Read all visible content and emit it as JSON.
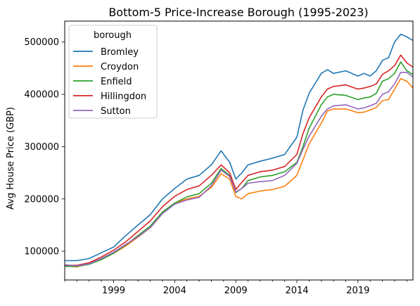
{
  "chart_data": {
    "type": "line",
    "title": "Bottom-5 Price-Increase Borough (1995-2023)",
    "xlabel": "",
    "ylabel": "Avg House Price (GBP)",
    "xlim": [
      1995.0,
      2023.5
    ],
    "ylim": [
      45000,
      540000
    ],
    "x_ticks": [
      1999,
      2004,
      2009,
      2014,
      2019
    ],
    "y_ticks": [
      100000,
      200000,
      300000,
      400000,
      500000
    ],
    "grid": false,
    "legend": {
      "title": "borough",
      "placement": "top-left"
    },
    "series": [
      {
        "name": "Bromley",
        "color": "#1f77b4",
        "points": [
          [
            1995.0,
            82000
          ],
          [
            1996.0,
            82000
          ],
          [
            1997.0,
            86000
          ],
          [
            1998.0,
            97000
          ],
          [
            1999.0,
            108000
          ],
          [
            2000.0,
            130000
          ],
          [
            2001.0,
            150000
          ],
          [
            2002.0,
            170000
          ],
          [
            2003.0,
            200000
          ],
          [
            2004.0,
            220000
          ],
          [
            2005.0,
            238000
          ],
          [
            2006.0,
            245000
          ],
          [
            2007.0,
            265000
          ],
          [
            2007.8,
            292000
          ],
          [
            2008.5,
            270000
          ],
          [
            2009.0,
            238000
          ],
          [
            2009.5,
            250000
          ],
          [
            2010.0,
            265000
          ],
          [
            2011.0,
            272000
          ],
          [
            2012.0,
            278000
          ],
          [
            2013.0,
            285000
          ],
          [
            2014.0,
            318000
          ],
          [
            2014.5,
            370000
          ],
          [
            2015.0,
            402000
          ],
          [
            2016.0,
            440000
          ],
          [
            2016.5,
            447000
          ],
          [
            2017.0,
            440000
          ],
          [
            2018.0,
            445000
          ],
          [
            2019.0,
            435000
          ],
          [
            2019.5,
            440000
          ],
          [
            2020.0,
            435000
          ],
          [
            2020.5,
            445000
          ],
          [
            2021.0,
            465000
          ],
          [
            2021.5,
            470000
          ],
          [
            2022.0,
            500000
          ],
          [
            2022.5,
            515000
          ],
          [
            2023.0,
            510000
          ],
          [
            2023.5,
            503000
          ]
        ]
      },
      {
        "name": "Croydon",
        "color": "#ff7f0e",
        "points": [
          [
            1995.0,
            72000
          ],
          [
            1996.0,
            70000
          ],
          [
            1997.0,
            76000
          ],
          [
            1998.0,
            85000
          ],
          [
            1999.0,
            96000
          ],
          [
            2000.0,
            110000
          ],
          [
            2001.0,
            127000
          ],
          [
            2002.0,
            145000
          ],
          [
            2003.0,
            172000
          ],
          [
            2004.0,
            192000
          ],
          [
            2005.0,
            200000
          ],
          [
            2006.0,
            205000
          ],
          [
            2007.0,
            222000
          ],
          [
            2007.8,
            248000
          ],
          [
            2008.5,
            238000
          ],
          [
            2009.0,
            205000
          ],
          [
            2009.5,
            200000
          ],
          [
            2010.0,
            210000
          ],
          [
            2011.0,
            215000
          ],
          [
            2012.0,
            218000
          ],
          [
            2013.0,
            224000
          ],
          [
            2014.0,
            245000
          ],
          [
            2014.5,
            275000
          ],
          [
            2015.0,
            305000
          ],
          [
            2016.0,
            345000
          ],
          [
            2016.5,
            368000
          ],
          [
            2017.0,
            372000
          ],
          [
            2018.0,
            372000
          ],
          [
            2019.0,
            365000
          ],
          [
            2019.5,
            366000
          ],
          [
            2020.0,
            370000
          ],
          [
            2020.5,
            375000
          ],
          [
            2021.0,
            388000
          ],
          [
            2021.5,
            390000
          ],
          [
            2022.0,
            410000
          ],
          [
            2022.5,
            430000
          ],
          [
            2023.0,
            425000
          ],
          [
            2023.5,
            412000
          ]
        ]
      },
      {
        "name": "Enfield",
        "color": "#2ca02c",
        "points": [
          [
            1995.0,
            71000
          ],
          [
            1996.0,
            71000
          ],
          [
            1997.0,
            75000
          ],
          [
            1998.0,
            84000
          ],
          [
            1999.0,
            96000
          ],
          [
            2000.0,
            112000
          ],
          [
            2001.0,
            130000
          ],
          [
            2002.0,
            148000
          ],
          [
            2003.0,
            175000
          ],
          [
            2004.0,
            192000
          ],
          [
            2005.0,
            204000
          ],
          [
            2006.0,
            210000
          ],
          [
            2007.0,
            230000
          ],
          [
            2007.8,
            258000
          ],
          [
            2008.5,
            245000
          ],
          [
            2009.0,
            212000
          ],
          [
            2009.5,
            220000
          ],
          [
            2010.0,
            235000
          ],
          [
            2011.0,
            242000
          ],
          [
            2012.0,
            245000
          ],
          [
            2013.0,
            252000
          ],
          [
            2014.0,
            270000
          ],
          [
            2014.5,
            300000
          ],
          [
            2015.0,
            335000
          ],
          [
            2016.0,
            380000
          ],
          [
            2016.5,
            395000
          ],
          [
            2017.0,
            400000
          ],
          [
            2018.0,
            398000
          ],
          [
            2019.0,
            390000
          ],
          [
            2019.5,
            393000
          ],
          [
            2020.0,
            395000
          ],
          [
            2020.5,
            402000
          ],
          [
            2021.0,
            425000
          ],
          [
            2021.5,
            430000
          ],
          [
            2022.0,
            440000
          ],
          [
            2022.5,
            462000
          ],
          [
            2023.0,
            445000
          ],
          [
            2023.5,
            438000
          ]
        ]
      },
      {
        "name": "Hillingdon",
        "color": "#d62728",
        "points": [
          [
            1995.0,
            73000
          ],
          [
            1996.0,
            73000
          ],
          [
            1997.0,
            78000
          ],
          [
            1998.0,
            89000
          ],
          [
            1999.0,
            102000
          ],
          [
            2000.0,
            118000
          ],
          [
            2001.0,
            138000
          ],
          [
            2002.0,
            158000
          ],
          [
            2003.0,
            185000
          ],
          [
            2004.0,
            205000
          ],
          [
            2005.0,
            218000
          ],
          [
            2006.0,
            225000
          ],
          [
            2007.0,
            245000
          ],
          [
            2007.8,
            265000
          ],
          [
            2008.5,
            250000
          ],
          [
            2009.0,
            218000
          ],
          [
            2009.5,
            232000
          ],
          [
            2010.0,
            245000
          ],
          [
            2011.0,
            252000
          ],
          [
            2012.0,
            255000
          ],
          [
            2013.0,
            262000
          ],
          [
            2014.0,
            285000
          ],
          [
            2014.5,
            325000
          ],
          [
            2015.0,
            355000
          ],
          [
            2016.0,
            395000
          ],
          [
            2016.5,
            410000
          ],
          [
            2017.0,
            415000
          ],
          [
            2018.0,
            418000
          ],
          [
            2019.0,
            410000
          ],
          [
            2019.5,
            412000
          ],
          [
            2020.0,
            415000
          ],
          [
            2020.5,
            420000
          ],
          [
            2021.0,
            438000
          ],
          [
            2021.5,
            445000
          ],
          [
            2022.0,
            455000
          ],
          [
            2022.5,
            475000
          ],
          [
            2023.0,
            460000
          ],
          [
            2023.5,
            452000
          ]
        ]
      },
      {
        "name": "Sutton",
        "color": "#9467bd",
        "points": [
          [
            1995.0,
            74000
          ],
          [
            1996.0,
            72000
          ],
          [
            1997.0,
            76000
          ],
          [
            1998.0,
            86000
          ],
          [
            1999.0,
            98000
          ],
          [
            2000.0,
            113000
          ],
          [
            2001.0,
            128000
          ],
          [
            2002.0,
            145000
          ],
          [
            2003.0,
            172000
          ],
          [
            2004.0,
            190000
          ],
          [
            2005.0,
            198000
          ],
          [
            2006.0,
            203000
          ],
          [
            2007.0,
            225000
          ],
          [
            2007.8,
            255000
          ],
          [
            2008.5,
            243000
          ],
          [
            2009.0,
            213000
          ],
          [
            2009.5,
            220000
          ],
          [
            2010.0,
            230000
          ],
          [
            2011.0,
            233000
          ],
          [
            2012.0,
            235000
          ],
          [
            2013.0,
            245000
          ],
          [
            2014.0,
            268000
          ],
          [
            2014.5,
            295000
          ],
          [
            2015.0,
            320000
          ],
          [
            2016.0,
            358000
          ],
          [
            2016.5,
            372000
          ],
          [
            2017.0,
            378000
          ],
          [
            2018.0,
            380000
          ],
          [
            2019.0,
            372000
          ],
          [
            2019.5,
            374000
          ],
          [
            2020.0,
            378000
          ],
          [
            2020.5,
            383000
          ],
          [
            2021.0,
            400000
          ],
          [
            2021.5,
            405000
          ],
          [
            2022.0,
            420000
          ],
          [
            2022.5,
            442000
          ],
          [
            2023.0,
            442000
          ],
          [
            2023.5,
            433000
          ]
        ]
      }
    ]
  }
}
